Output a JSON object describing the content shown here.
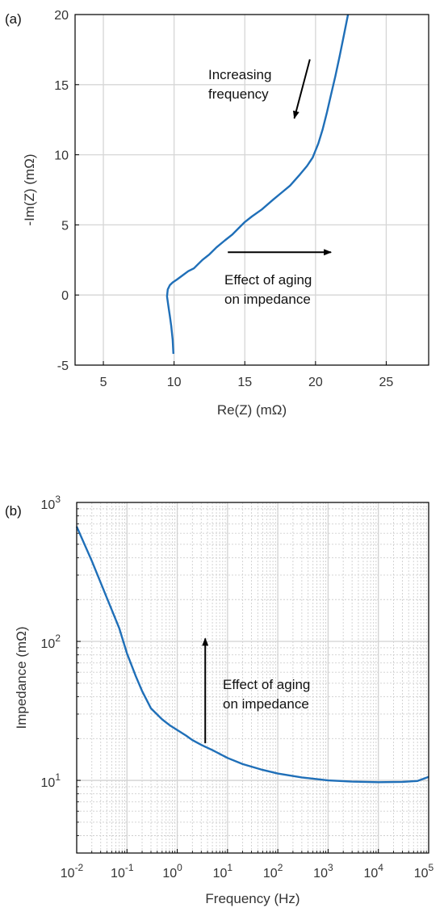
{
  "chart_data": [
    {
      "type": "line",
      "panel_label": "(a)",
      "xlabel": "Re(Z) (mΩ)",
      "ylabel": "-Im(Z) (mΩ)",
      "xlim": [
        3,
        28
      ],
      "ylim": [
        -5,
        20
      ],
      "x_ticks": [
        5,
        10,
        15,
        20,
        25
      ],
      "y_ticks": [
        -5,
        0,
        5,
        10,
        15,
        20
      ],
      "grid": true,
      "series": [
        {
          "color": "#1f6fb8",
          "x": [
            9.95,
            9.9,
            9.8,
            9.7,
            9.6,
            9.5,
            9.55,
            9.7,
            9.9,
            10.2,
            10.6,
            11.0,
            11.4,
            11.6,
            12.0,
            12.5,
            13.0,
            13.6,
            14.1,
            14.6,
            15.0,
            15.5,
            16.2,
            17.0,
            17.6,
            18.2,
            18.9,
            19.4,
            19.8,
            20.2,
            20.5,
            20.8,
            21.1,
            21.4,
            21.7,
            22.0,
            22.3
          ],
          "y": [
            -4.2,
            -3.2,
            -2.2,
            -1.5,
            -0.8,
            -0.1,
            0.4,
            0.7,
            0.9,
            1.1,
            1.4,
            1.7,
            1.9,
            2.1,
            2.5,
            2.9,
            3.4,
            3.9,
            4.3,
            4.8,
            5.2,
            5.6,
            6.1,
            6.8,
            7.3,
            7.8,
            8.6,
            9.2,
            9.8,
            10.8,
            11.8,
            13.0,
            14.3,
            15.6,
            17.0,
            18.5,
            20.0
          ]
        }
      ],
      "annotations": [
        {
          "text_lines": [
            "Increasing",
            "frequency"
          ],
          "arrow": {
            "from": [
              19.6,
              16.8
            ],
            "to": [
              18.5,
              12.6
            ]
          }
        },
        {
          "text_lines": [
            "Effect of aging",
            "on impedance"
          ],
          "arrow": {
            "from": [
              13.8,
              3.05
            ],
            "to": [
              21.1,
              3.05
            ]
          }
        }
      ]
    },
    {
      "type": "line",
      "panel_label": "(b)",
      "xlabel": "Frequency (Hz)",
      "ylabel": "Impedance (mΩ)",
      "xscale": "log",
      "yscale": "log",
      "xlim": [
        0.01,
        100000
      ],
      "ylim": [
        3,
        1000
      ],
      "x_ticks": [
        {
          "value": 0.01,
          "base": "10",
          "exp": "-2"
        },
        {
          "value": 0.1,
          "base": "10",
          "exp": "-1"
        },
        {
          "value": 1,
          "base": "10",
          "exp": "0"
        },
        {
          "value": 10,
          "base": "10",
          "exp": "1"
        },
        {
          "value": 100,
          "base": "10",
          "exp": "2"
        },
        {
          "value": 1000,
          "base": "10",
          "exp": "3"
        },
        {
          "value": 10000,
          "base": "10",
          "exp": "4"
        },
        {
          "value": 100000,
          "base": "10",
          "exp": "5"
        }
      ],
      "y_ticks": [
        {
          "value": 10,
          "base": "10",
          "exp": "1"
        },
        {
          "value": 100,
          "base": "10",
          "exp": "2"
        },
        {
          "value": 1000,
          "base": "10",
          "exp": "3"
        }
      ],
      "grid": true,
      "series": [
        {
          "color": "#1f6fb8",
          "x": [
            0.01,
            0.02,
            0.04,
            0.07,
            0.1,
            0.15,
            0.2,
            0.3,
            0.5,
            0.7,
            1,
            1.5,
            2,
            3,
            5,
            10,
            20,
            50,
            100,
            300,
            1000,
            3000,
            10000,
            30000,
            60000,
            100000
          ],
          "y": [
            670,
            380,
            205,
            125,
            82,
            56,
            44,
            33,
            27.5,
            25,
            23,
            21,
            19.5,
            18,
            16.5,
            14.5,
            13.1,
            11.9,
            11.2,
            10.5,
            10.0,
            9.8,
            9.7,
            9.75,
            9.9,
            10.6
          ]
        }
      ],
      "annotations": [
        {
          "text_lines": [
            "Effect of aging",
            "on impedance"
          ],
          "arrow": {
            "from": [
              3.6,
              18.5
            ],
            "to": [
              3.6,
              105
            ]
          }
        }
      ]
    }
  ]
}
